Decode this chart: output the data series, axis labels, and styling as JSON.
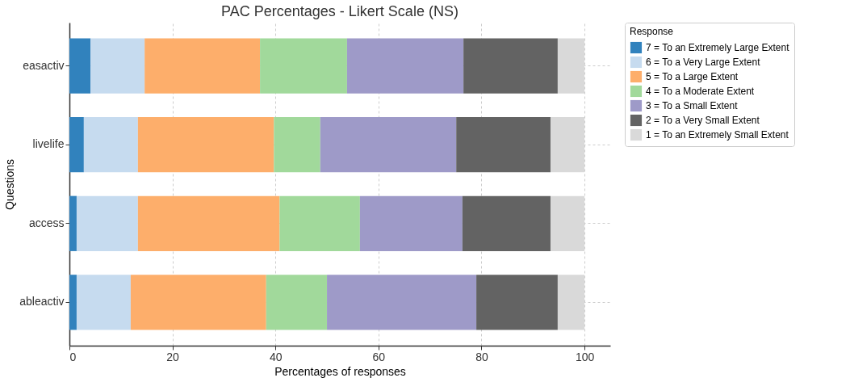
{
  "chart_data": {
    "type": "bar",
    "orientation": "horizontal",
    "stacked": true,
    "title": "PAC Percentages - Likert Scale (NS)",
    "xlabel": "Percentages of responses",
    "ylabel": "Questions",
    "legend_title": "Response",
    "legend": "right",
    "categories": [
      "easactiv",
      "livelife",
      "access",
      "ableactiv"
    ],
    "series": [
      {
        "name": "7 = To an Extremely Large Extent",
        "color": "#3182bd",
        "values": [
          4.1,
          2.8,
          1.4,
          1.4
        ]
      },
      {
        "name": "6 = To a Very Large Extent",
        "color": "#c6dbef",
        "values": [
          10.5,
          10.5,
          11.9,
          10.5
        ]
      },
      {
        "name": "5 = To a Large Extent",
        "color": "#fdae6b",
        "values": [
          22.4,
          26.4,
          27.5,
          26.3
        ]
      },
      {
        "name": "4 = To a Moderate Extent",
        "color": "#a1d99b",
        "values": [
          16.9,
          9.0,
          15.6,
          11.8
        ]
      },
      {
        "name": "3 = To a Small Extent",
        "color": "#9e9ac8",
        "values": [
          22.6,
          26.4,
          19.9,
          29.0
        ]
      },
      {
        "name": "2 = To a Very Small Extent",
        "color": "#636363",
        "values": [
          18.3,
          18.3,
          17.1,
          15.8
        ]
      },
      {
        "name": "1 = To an Extremely Small Extent",
        "color": "#d9d9d9",
        "values": [
          5.2,
          6.6,
          6.6,
          5.2
        ]
      }
    ],
    "xlim": [
      0,
      105
    ],
    "xticks": [
      0,
      20,
      40,
      60,
      80,
      100
    ],
    "grid": true
  }
}
